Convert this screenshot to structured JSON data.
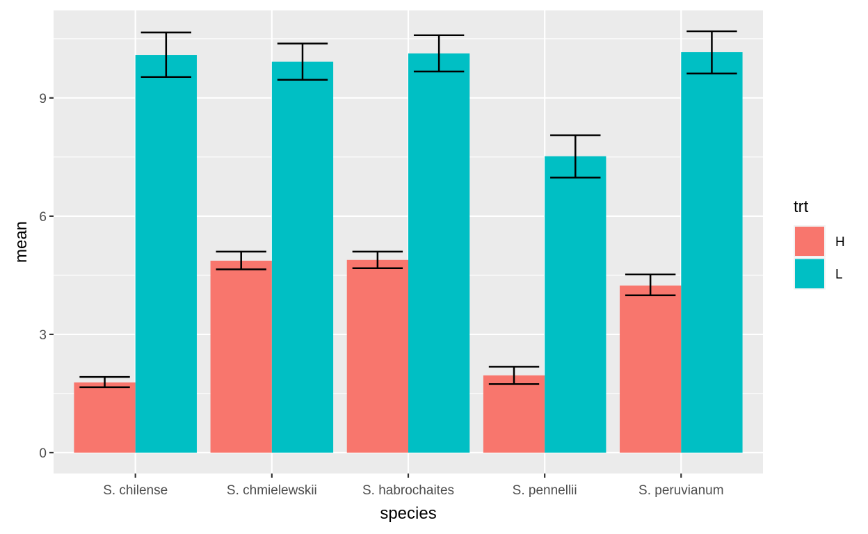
{
  "chart_data": {
    "type": "bar",
    "title": "",
    "xlabel": "species",
    "ylabel": "mean",
    "categories": [
      "S. chilense",
      "S. chmielewskii",
      "S. habrochaites",
      "S. pennellii",
      "S. peruvianum"
    ],
    "ylim": [
      -0.53,
      11.22
    ],
    "yticks": [
      0,
      3,
      6,
      9
    ],
    "ytick_labels": [
      "0",
      "3",
      "6",
      "9"
    ],
    "grid": true,
    "legend": {
      "title": "trt",
      "position": "right",
      "entries": [
        "H",
        "L"
      ]
    },
    "series": [
      {
        "name": "H",
        "color": "#F8766D",
        "values": [
          1.78,
          4.87,
          4.89,
          1.96,
          4.24
        ],
        "error_lower": [
          1.66,
          4.65,
          4.68,
          1.74,
          3.99
        ],
        "error_upper": [
          1.92,
          5.1,
          5.1,
          2.18,
          4.52
        ]
      },
      {
        "name": "L",
        "color": "#00BFC4",
        "values": [
          10.09,
          9.92,
          10.13,
          7.52,
          10.16
        ],
        "error_lower": [
          9.53,
          9.46,
          9.67,
          6.98,
          9.62
        ],
        "error_upper": [
          10.66,
          10.38,
          10.59,
          8.05,
          10.69
        ]
      }
    ],
    "colors": {
      "panel_background": "#EBEBEB",
      "grid": "#FFFFFF",
      "error_bar": "#000000"
    }
  }
}
